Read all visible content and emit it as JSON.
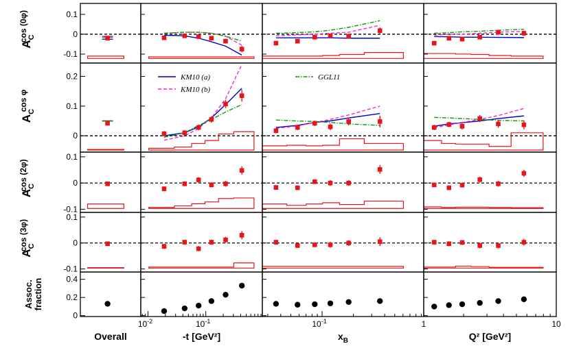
{
  "chart_data": {
    "type": "scatter",
    "title": "",
    "colors": {
      "data": "#e8141b",
      "km10a": "#0000cc",
      "km10b": "#ff22cc",
      "ggl11": "#00a000",
      "assoc": "#000000",
      "sys": "#e8141b"
    },
    "columns": [
      {
        "key": "overall",
        "xlabel": "Overall",
        "scale": "none",
        "xlim": [
          0,
          1
        ],
        "ticks": []
      },
      {
        "key": "t",
        "xlabel": "-t [GeV²]",
        "scale": "log",
        "xlim": [
          0.0075,
          0.95
        ],
        "ticks": [
          {
            "v": 0.01,
            "base": "10",
            "exp": "-2"
          },
          {
            "v": 0.1,
            "base": "10",
            "exp": "-1"
          }
        ]
      },
      {
        "key": "xb",
        "xlabel": "x",
        "xlabel_sub": "B",
        "scale": "log",
        "xlim": [
          0.0266,
          0.95
        ],
        "ticks": [
          {
            "v": 0.1,
            "base": "10",
            "exp": "-1"
          }
        ]
      },
      {
        "key": "q2",
        "xlabel": "Q² [GeV²]",
        "scale": "log",
        "xlim": [
          1,
          10
        ],
        "ticks": [
          {
            "v": 1,
            "label": "1"
          },
          {
            "v": 10,
            "label": "10"
          }
        ]
      }
    ],
    "x_points": {
      "overall": [
        0.45
      ],
      "t": [
        0.019,
        0.043,
        0.075,
        0.125,
        0.22,
        0.42
      ],
      "xb": [
        0.036,
        0.058,
        0.085,
        0.12,
        0.18,
        0.36
      ],
      "q2": [
        1.2,
        1.55,
        1.95,
        2.65,
        3.65,
        5.7
      ]
    },
    "rows": [
      {
        "label_main": "A",
        "label_sub": "C",
        "label_sup": "cos (0φ)",
        "ylim": [
          -0.145,
          0.155
        ],
        "yticks": [
          {
            "v": 0.1,
            "label": "0.1"
          },
          {
            "v": 0,
            "label": "0"
          },
          {
            "v": -0.1,
            "label": "-0.1"
          }
        ],
        "values": {
          "overall": [
            -0.02
          ],
          "t": [
            -0.018,
            -0.008,
            -0.012,
            -0.02,
            -0.035,
            -0.075
          ],
          "xb": [
            -0.045,
            -0.035,
            -0.015,
            -0.008,
            -0.01,
            0.018
          ],
          "q2": [
            -0.045,
            -0.02,
            -0.025,
            -0.015,
            0.01,
            0.005
          ]
        },
        "errors": {
          "overall": [
            0.007
          ],
          "t": [
            0.008,
            0.008,
            0.009,
            0.01,
            0.012,
            0.016
          ],
          "xb": [
            0.009,
            0.008,
            0.008,
            0.009,
            0.01,
            0.016
          ],
          "q2": [
            0.008,
            0.008,
            0.009,
            0.009,
            0.011,
            0.012
          ]
        },
        "sys_base": -0.122,
        "sys": {
          "overall": [
            0.012
          ],
          "t": [
            0.008,
            0.008,
            0.008,
            0.008,
            0.008,
            0.008
          ],
          "xb": [
            0.012,
            0.012,
            0.012,
            0.015,
            0.02,
            0.03
          ],
          "q2": [
            0.025,
            0.025,
            0.022,
            0.02,
            0.015,
            0.012
          ]
        },
        "curves": {
          "km10a": {
            "overall": [
              -0.025
            ],
            "t": [
              -0.005,
              -0.008,
              -0.02,
              -0.038,
              -0.06,
              -0.105
            ],
            "xb": [
              -0.018,
              -0.018,
              -0.018,
              -0.018,
              -0.02,
              -0.02
            ],
            "q2": [
              -0.012,
              -0.013,
              -0.015,
              -0.015,
              -0.016,
              -0.017
            ]
          },
          "km10b": {
            "overall": [
              -0.01
            ],
            "t": [
              0.005,
              0.01,
              0.01,
              0.005,
              -0.01,
              -0.055
            ],
            "xb": [
              -0.008,
              -0.003,
              0.0,
              0.005,
              0.01,
              0.045
            ],
            "q2": [
              -0.005,
              0.0,
              0.0,
              0.005,
              0.01,
              0.015
            ]
          },
          "ggl11": {
            "overall": [
              -0.015
            ],
            "t": [
              0.005,
              0.01,
              0.01,
              0.005,
              -0.01,
              -0.035
            ],
            "xb": [
              0.005,
              0.008,
              0.012,
              0.02,
              0.035,
              0.068
            ],
            "q2": [
              0.005,
              0.008,
              0.012,
              0.015,
              0.02,
              0.025
            ]
          }
        }
      },
      {
        "label_main": "A",
        "label_sub": "C",
        "label_sup": "cos φ",
        "ylim": [
          -0.055,
          0.245
        ],
        "yticks": [
          {
            "v": 0.2,
            "label": "0.2"
          },
          {
            "v": 0.1,
            "label": "0.1"
          },
          {
            "v": 0,
            "label": "0"
          }
        ],
        "values": {
          "overall": [
            0.042
          ],
          "t": [
            0.007,
            0.01,
            0.028,
            0.055,
            0.107,
            0.135
          ],
          "xb": [
            0.017,
            0.028,
            0.042,
            0.03,
            0.048,
            0.048
          ],
          "q2": [
            0.028,
            0.038,
            0.032,
            0.058,
            0.04,
            0.037
          ]
        },
        "errors": {
          "overall": [
            0.006
          ],
          "t": [
            0.009,
            0.009,
            0.01,
            0.011,
            0.014,
            0.02
          ],
          "xb": [
            0.009,
            0.009,
            0.009,
            0.011,
            0.013,
            0.02
          ],
          "q2": [
            0.009,
            0.009,
            0.011,
            0.012,
            0.013,
            0.015
          ]
        },
        "sys_base": -0.048,
        "sys": {
          "overall": [
            0.002
          ],
          "t": [
            0.006,
            0.01,
            0.022,
            0.032,
            0.054,
            0.062
          ],
          "xb": [
            0.014,
            0.016,
            0.014,
            0.016,
            0.038,
            0.022
          ],
          "q2": [
            0.032,
            0.022,
            0.02,
            0.02,
            0.012,
            0.058
          ]
        },
        "curves": {
          "km10a": {
            "overall": [
              0.05
            ],
            "t": [
              0.0,
              0.01,
              0.03,
              0.06,
              0.105,
              0.16
            ],
            "xb": [
              0.028,
              0.035,
              0.045,
              0.05,
              0.06,
              0.075
            ],
            "q2": [
              0.032,
              0.04,
              0.044,
              0.05,
              0.058,
              0.067
            ]
          },
          "km10b": {
            "overall": [
              0.05
            ],
            "t": [
              -0.015,
              0.0,
              0.025,
              0.06,
              0.125,
              0.24
            ],
            "xb": [
              0.025,
              0.033,
              0.045,
              0.055,
              0.07,
              0.1
            ],
            "q2": [
              0.028,
              0.036,
              0.045,
              0.055,
              0.068,
              0.092
            ]
          },
          "ggl11": {
            "overall": [
              0.05
            ],
            "t": [
              -0.005,
              0.01,
              0.035,
              0.055,
              0.08,
              0.105
            ],
            "xb": [
              0.053,
              0.05,
              0.048,
              0.045,
              0.04,
              0.035
            ],
            "q2": [
              0.062,
              0.06,
              0.058,
              0.055,
              0.052,
              0.05
            ]
          }
        }
      },
      {
        "label_main": "A",
        "label_sub": "C",
        "label_sup": "cos (2φ)",
        "ylim": [
          -0.112,
          0.118
        ],
        "yticks": [
          {
            "v": 0.1,
            "label": "0.1"
          },
          {
            "v": 0,
            "label": "0"
          },
          {
            "v": -0.1,
            "label": "-0.1"
          }
        ],
        "values": {
          "overall": [
            -0.003
          ],
          "t": [
            -0.022,
            -0.003,
            0.012,
            -0.007,
            -0.003,
            0.048
          ],
          "xb": [
            -0.017,
            -0.018,
            0.005,
            0.0,
            0.0,
            0.052
          ],
          "q2": [
            -0.007,
            -0.018,
            -0.008,
            0.013,
            -0.003,
            0.037
          ]
        },
        "errors": {
          "overall": [
            0.006
          ],
          "t": [
            0.009,
            0.009,
            0.01,
            0.01,
            0.011,
            0.016
          ],
          "xb": [
            0.009,
            0.009,
            0.009,
            0.011,
            0.011,
            0.017
          ],
          "q2": [
            0.009,
            0.009,
            0.009,
            0.011,
            0.011,
            0.013
          ]
        },
        "sys_base": -0.097,
        "sys": {
          "overall": [
            0.017
          ],
          "t": [
            0.004,
            0.01,
            0.018,
            0.025,
            0.038,
            0.04
          ],
          "xb": [
            0.017,
            0.012,
            0.017,
            0.022,
            0.015,
            0.028
          ],
          "q2": [
            0.006,
            0.004,
            0.005,
            0.005,
            0.004,
            0.003
          ]
        },
        "curves": {}
      },
      {
        "label_main": "A",
        "label_sub": "C",
        "label_sup": "cos (3φ)",
        "ylim": [
          -0.112,
          0.118
        ],
        "yticks": [
          {
            "v": 0.1,
            "label": "0.1"
          },
          {
            "v": 0,
            "label": "0"
          },
          {
            "v": -0.1,
            "label": "-0.1"
          }
        ],
        "values": {
          "overall": [
            -0.003
          ],
          "t": [
            -0.013,
            0.003,
            -0.022,
            0.003,
            0.012,
            0.03
          ],
          "xb": [
            0.003,
            -0.01,
            -0.007,
            -0.007,
            0.0,
            0.005
          ],
          "q2": [
            0.003,
            -0.003,
            0.002,
            -0.01,
            -0.01,
            0.003
          ]
        },
        "errors": {
          "overall": [
            0.006
          ],
          "t": [
            0.009,
            0.009,
            0.01,
            0.01,
            0.012,
            0.016
          ],
          "xb": [
            0.009,
            0.009,
            0.009,
            0.011,
            0.011,
            0.017
          ],
          "q2": [
            0.009,
            0.009,
            0.009,
            0.011,
            0.011,
            0.013
          ]
        },
        "sys_base": -0.097,
        "sys": {
          "overall": [
            0.002
          ],
          "t": [
            0.004,
            0.004,
            0.004,
            0.004,
            0.004,
            0.02
          ],
          "xb": [
            0.007,
            0.007,
            0.007,
            0.007,
            0.007,
            0.007
          ],
          "q2": [
            0.004,
            0.004,
            0.008,
            0.006,
            0.003,
            0.003
          ]
        },
        "curves": {}
      },
      {
        "label_main": "Assoc.",
        "label_main2": "fraction",
        "ylim": [
          -0.01,
          0.48
        ],
        "yticks": [
          {
            "v": 0.4,
            "label": "0.4"
          },
          {
            "v": 0.2,
            "label": "0.2"
          },
          {
            "v": 0,
            "label": "0"
          }
        ],
        "values": {
          "overall": [
            0.13
          ],
          "t": [
            0.05,
            0.08,
            0.11,
            0.16,
            0.23,
            0.33
          ],
          "xb": [
            0.13,
            0.12,
            0.125,
            0.135,
            0.15,
            0.16
          ],
          "q2": [
            0.1,
            0.115,
            0.125,
            0.14,
            0.16,
            0.18
          ]
        },
        "marker": "circle",
        "curves": {}
      }
    ],
    "legend": [
      {
        "key": "km10a",
        "label": "KM10 (a)",
        "style": "solid"
      },
      {
        "key": "km10b",
        "label": "KM10 (b)",
        "style": "dashed"
      },
      {
        "key": "ggl11",
        "label": "GGL11",
        "style": "dashdot"
      }
    ]
  }
}
